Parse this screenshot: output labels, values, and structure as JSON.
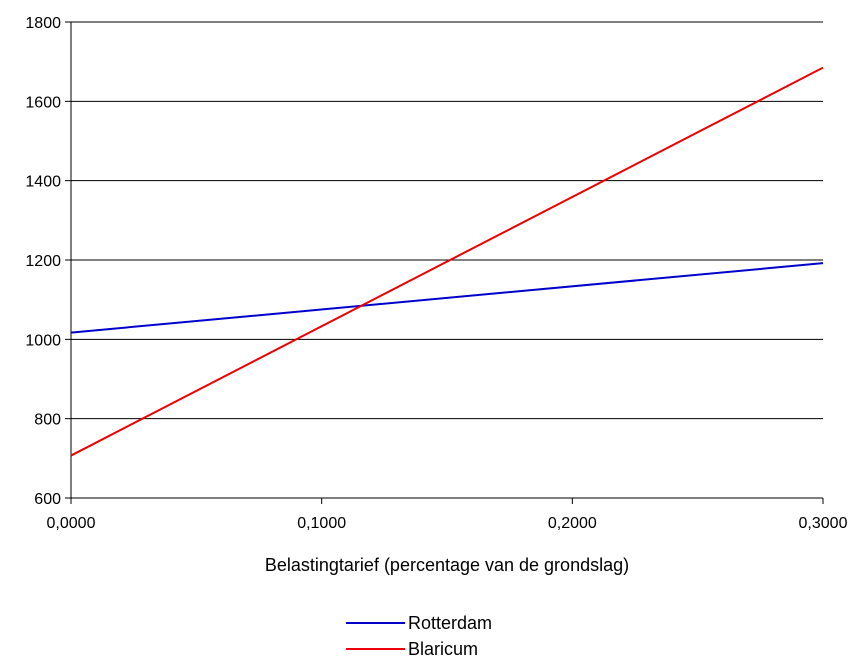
{
  "chart_data": {
    "type": "line",
    "title": "",
    "xlabel": "Belastingtarief (percentage van de grondslag)",
    "ylabel": "",
    "xlim": [
      0,
      0.3
    ],
    "ylim": [
      600,
      1800
    ],
    "x_ticks": [
      0,
      0.1,
      0.2,
      0.3
    ],
    "x_tick_labels": [
      "0,0000",
      "0,1000",
      "0,2000",
      "0,3000"
    ],
    "y_ticks": [
      600,
      800,
      1000,
      1200,
      1400,
      1600,
      1800
    ],
    "y_tick_labels": [
      "600",
      "800",
      "1000",
      "1200",
      "1400",
      "1600",
      "1800"
    ],
    "grid": "horizontal",
    "legend_position": "bottom",
    "series": [
      {
        "name": "Rotterdam",
        "color": "#0000cc",
        "x": [
          0,
          0.3
        ],
        "y": [
          1017,
          1192
        ]
      },
      {
        "name": "Blaricum",
        "color": "#ee0000",
        "x": [
          0,
          0.3
        ],
        "y": [
          707,
          1685
        ]
      }
    ]
  }
}
